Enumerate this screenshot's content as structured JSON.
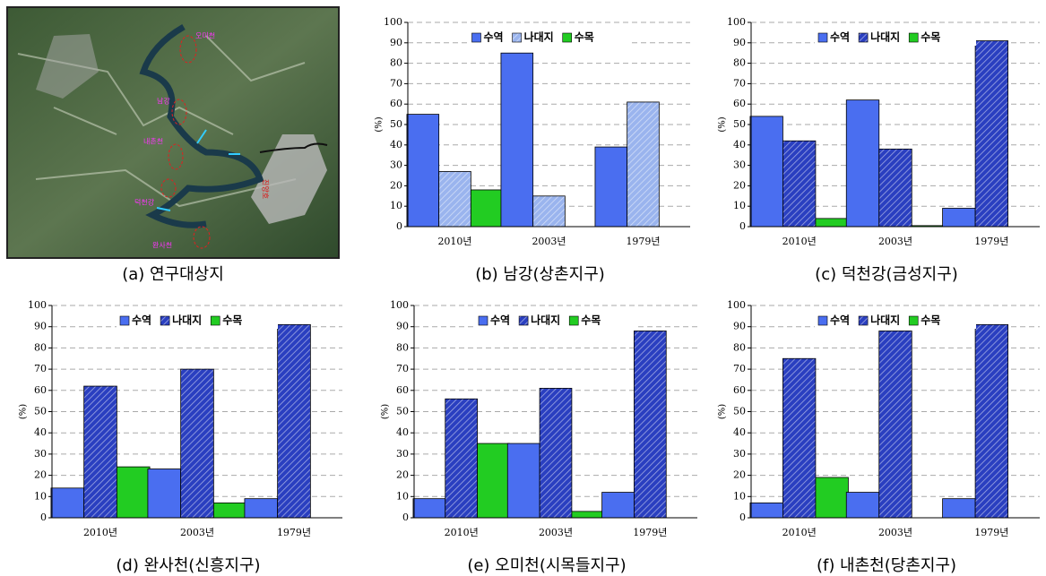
{
  "figure_a": {
    "caption": "(a) 연구대상지",
    "labels": [
      "오미천",
      "남강",
      "내촌천",
      "덕천강",
      "완사천",
      "진양호"
    ]
  },
  "chart_data": [
    {
      "type": "bar",
      "caption": "(b) 남강(상촌지구)",
      "ylabel": "(%)",
      "categories": [
        "2010년",
        "2003년",
        "1979년"
      ],
      "series": [
        {
          "name": "수역",
          "color": "#4a6ef0",
          "hatch": false,
          "values": [
            55,
            85,
            39
          ]
        },
        {
          "name": "나대지",
          "color": "#9ab4ee",
          "hatch": true,
          "values": [
            27,
            15,
            61
          ]
        },
        {
          "name": "수목",
          "color": "#22cc22",
          "hatch": false,
          "values": [
            18,
            0,
            0
          ]
        }
      ],
      "ylim": [
        0,
        100
      ],
      "yticks": [
        0,
        10,
        20,
        30,
        40,
        50,
        60,
        70,
        80,
        90,
        100
      ],
      "grid": true
    },
    {
      "type": "bar",
      "caption": "(c) 덕천강(금성지구)",
      "ylabel": "(%)",
      "categories": [
        "2010년",
        "2003년",
        "1979년"
      ],
      "series": [
        {
          "name": "수역",
          "color": "#4a6ef0",
          "hatch": false,
          "values": [
            54,
            62,
            9
          ]
        },
        {
          "name": "나대지",
          "color": "#2a3fc0",
          "hatch": true,
          "values": [
            42,
            38,
            91
          ]
        },
        {
          "name": "수목",
          "color": "#22cc22",
          "hatch": false,
          "values": [
            4,
            0.5,
            0
          ]
        }
      ],
      "ylim": [
        0,
        100
      ],
      "yticks": [
        0,
        10,
        20,
        30,
        40,
        50,
        60,
        70,
        80,
        90,
        100
      ],
      "grid": true
    },
    {
      "type": "bar",
      "caption": "(d) 완사천(신흥지구)",
      "ylabel": "(%)",
      "categories": [
        "2010년",
        "2003년",
        "1979년"
      ],
      "series": [
        {
          "name": "수역",
          "color": "#4a6ef0",
          "hatch": false,
          "values": [
            14,
            23,
            9
          ]
        },
        {
          "name": "나대지",
          "color": "#2a3fc0",
          "hatch": true,
          "values": [
            62,
            70,
            91
          ]
        },
        {
          "name": "수목",
          "color": "#22cc22",
          "hatch": false,
          "values": [
            24,
            7,
            0
          ]
        }
      ],
      "ylim": [
        0,
        100
      ],
      "yticks": [
        0,
        10,
        20,
        30,
        40,
        50,
        60,
        70,
        80,
        90,
        100
      ],
      "grid": true
    },
    {
      "type": "bar",
      "caption": "(e) 오미천(시목들지구)",
      "ylabel": "(%)",
      "categories": [
        "2010년",
        "2003년",
        "1979년"
      ],
      "series": [
        {
          "name": "수역",
          "color": "#4a6ef0",
          "hatch": false,
          "values": [
            9,
            35,
            12
          ]
        },
        {
          "name": "나대지",
          "color": "#2a3fc0",
          "hatch": true,
          "values": [
            56,
            61,
            88
          ]
        },
        {
          "name": "수목",
          "color": "#22cc22",
          "hatch": false,
          "values": [
            35,
            3,
            0
          ]
        }
      ],
      "ylim": [
        0,
        100
      ],
      "yticks": [
        0,
        10,
        20,
        30,
        40,
        50,
        60,
        70,
        80,
        90,
        100
      ],
      "grid": true
    },
    {
      "type": "bar",
      "caption": "(f) 내촌천(당촌지구)",
      "ylabel": "(%)",
      "categories": [
        "2010년",
        "2003년",
        "1979년"
      ],
      "series": [
        {
          "name": "수역",
          "color": "#4a6ef0",
          "hatch": false,
          "values": [
            7,
            12,
            9
          ]
        },
        {
          "name": "나대지",
          "color": "#2a3fc0",
          "hatch": true,
          "values": [
            75,
            88,
            91
          ]
        },
        {
          "name": "수목",
          "color": "#22cc22",
          "hatch": false,
          "values": [
            19,
            0,
            0
          ]
        }
      ],
      "ylim": [
        0,
        100
      ],
      "yticks": [
        0,
        10,
        20,
        30,
        40,
        50,
        60,
        70,
        80,
        90,
        100
      ],
      "grid": true
    }
  ]
}
